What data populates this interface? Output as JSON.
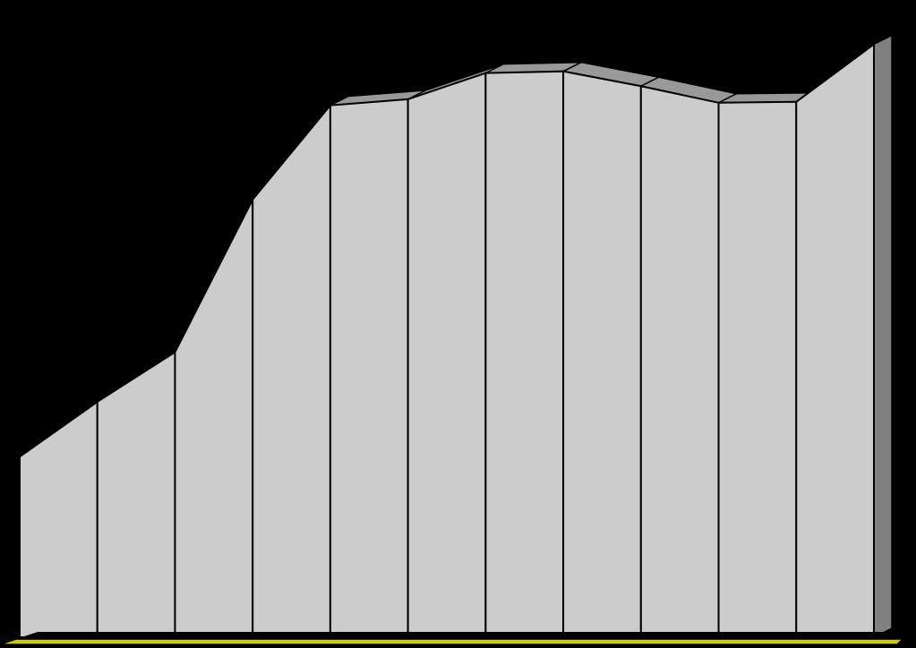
{
  "chart_data": {
    "type": "area",
    "three_d": true,
    "x": [
      1,
      2,
      3,
      4,
      5,
      6,
      7,
      8,
      9,
      10,
      11,
      12
    ],
    "values": [
      207,
      270,
      327,
      502,
      610,
      617,
      647,
      649,
      632,
      613,
      614,
      680
    ],
    "ylim": [
      0,
      700
    ],
    "grid": false,
    "legend": "none",
    "title": "",
    "xlabel": "",
    "ylabel": "",
    "colors": {
      "background": "#000000",
      "area_front": "#cccccc",
      "area_top": "#999999",
      "area_side": "#808080",
      "floor": "#cccc00",
      "stroke": "#000000"
    }
  }
}
